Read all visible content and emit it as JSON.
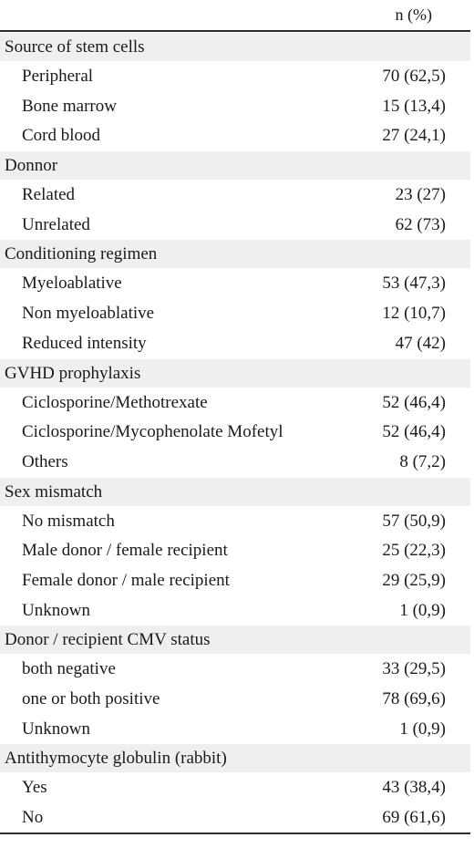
{
  "table": {
    "column_header": "n (%)",
    "sections": [
      {
        "title": "Source of stem cells",
        "rows": [
          {
            "label": "Peripheral",
            "value": "70 (62,5)"
          },
          {
            "label": "Bone marrow",
            "value": "15 (13,4)"
          },
          {
            "label": "Cord blood",
            "value": "27 (24,1)"
          }
        ]
      },
      {
        "title": "Donnor",
        "rows": [
          {
            "label": "Related",
            "value": "23 (27)"
          },
          {
            "label": "Unrelated",
            "value": "62 (73)"
          }
        ]
      },
      {
        "title": "Conditioning regimen",
        "rows": [
          {
            "label": "Myeloablative",
            "value": "53 (47,3)"
          },
          {
            "label": "Non myeloablative",
            "value": "12 (10,7)"
          },
          {
            "label": "Reduced intensity",
            "value": "47 (42)"
          }
        ]
      },
      {
        "title": "GVHD prophylaxis",
        "rows": [
          {
            "label": "Ciclosporine/Methotrexate",
            "value": "52 (46,4)"
          },
          {
            "label": "Ciclosporine/Mycophenolate Mofetyl",
            "value": "52 (46,4)"
          },
          {
            "label": "Others",
            "value": "8 (7,2)"
          }
        ]
      },
      {
        "title": "Sex mismatch",
        "rows": [
          {
            "label": "No mismatch",
            "value": "57 (50,9)"
          },
          {
            "label": "Male donor / female recipient",
            "value": "25 (22,3)"
          },
          {
            "label": "Female donor / male recipient",
            "value": "29 (25,9)"
          },
          {
            "label": "Unknown",
            "value": "1 (0,9)"
          }
        ]
      },
      {
        "title": "Donor / recipient CMV status",
        "rows": [
          {
            "label": "both negative",
            "value": "33 (29,5)"
          },
          {
            "label": "one or both positive",
            "value": "78 (69,6)"
          },
          {
            "label": "Unknown",
            "value": "1 (0,9)"
          }
        ]
      },
      {
        "title": "Antithymocyte globulin (rabbit)",
        "rows": [
          {
            "label": "Yes",
            "value": "43 (38,4)"
          },
          {
            "label": "No",
            "value": "69 (61,6)"
          }
        ]
      }
    ]
  }
}
